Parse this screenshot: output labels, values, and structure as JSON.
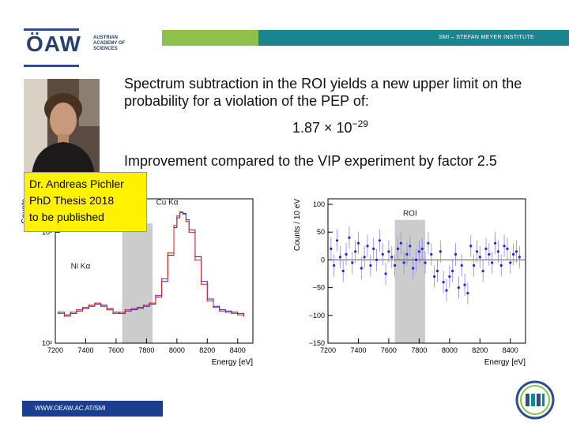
{
  "header": {
    "institute": "SMI – STEFAN MEYER INSTITUTE",
    "oaw_logo": "ÖAW",
    "academy_lines": [
      "AUSTRIAN",
      "ACADEMY OF",
      "SCIENCES"
    ]
  },
  "slide": {
    "headline": "Spectrum subtraction in the ROI yields a new upper limit on the probability for a violation of the PEP of:",
    "formula_mantissa": "1.87 × 10",
    "formula_exponent": "−29",
    "improvement": "Improvement compared to the VIP experiment by factor 2.5",
    "note_lines": [
      "Dr. Andreas Pichler",
      "PhD Thesis 2018",
      "to be published"
    ],
    "photo_icon": "portrait-photo"
  },
  "footer": {
    "url": "WWW.OEAW.AC.AT/SMI",
    "logo_icon": "smi-logo"
  },
  "colors": {
    "green": "#8fc04a",
    "teal": "#18858f",
    "navy": "#1a3f8f",
    "roi_band": "#cccccc",
    "series_blue": "#2222dd",
    "series_red": "#dd2222",
    "error_blue": "#8888ee"
  },
  "chart_data": [
    {
      "type": "line",
      "title": "",
      "xlabel": "Energy [eV]",
      "ylabel": "Counts",
      "log_y": true,
      "xlim": [
        7200,
        8500
      ],
      "ylim": [
        100,
        2000
      ],
      "x_ticks": [
        7200,
        7400,
        7600,
        7800,
        8000,
        8200,
        8400
      ],
      "y_tick_labels": [
        "10²",
        "10³"
      ],
      "y_ticks": [
        100,
        1000
      ],
      "roi": {
        "label": "ROI",
        "x_range": [
          7640,
          7840
        ]
      },
      "annotations": [
        {
          "text": "Cu Kα",
          "x": 8040,
          "y": 1500
        },
        {
          "text": "Ni Kα",
          "x": 7470,
          "y": 400
        }
      ],
      "x": [
        7220,
        7260,
        7300,
        7340,
        7380,
        7420,
        7460,
        7500,
        7540,
        7580,
        7620,
        7660,
        7700,
        7740,
        7780,
        7820,
        7860,
        7900,
        7940,
        7980,
        8000,
        8020,
        8040,
        8060,
        8080,
        8120,
        8160,
        8200,
        8240,
        8280,
        8320,
        8360,
        8400,
        8440
      ],
      "series": [
        {
          "name": "",
          "color": "blue",
          "values": [
            190,
            180,
            185,
            195,
            205,
            215,
            225,
            220,
            205,
            190,
            185,
            195,
            200,
            210,
            215,
            225,
            260,
            360,
            620,
            1100,
            1350,
            1500,
            1480,
            1300,
            1050,
            600,
            360,
            250,
            215,
            200,
            195,
            190,
            185,
            180
          ]
        },
        {
          "name": "",
          "color": "red",
          "values": [
            185,
            175,
            190,
            200,
            210,
            220,
            230,
            215,
            200,
            185,
            190,
            200,
            205,
            205,
            220,
            230,
            270,
            380,
            650,
            1150,
            1400,
            1520,
            1450,
            1250,
            1000,
            560,
            340,
            240,
            210,
            195,
            190,
            185,
            180,
            175
          ]
        }
      ]
    },
    {
      "type": "scatter",
      "title": "",
      "xlabel": "Energy [eV]",
      "ylabel": "Counts / 10 eV",
      "xlim": [
        7200,
        8500
      ],
      "ylim": [
        -150,
        110
      ],
      "x_ticks": [
        7200,
        7400,
        7600,
        7800,
        8000,
        8200,
        8400
      ],
      "y_ticks": [
        -150,
        -100,
        -50,
        0,
        50,
        100
      ],
      "y_tick_labels": [
        "−150",
        "−100",
        "−50",
        "0",
        "50",
        "100"
      ],
      "roi": {
        "label": "ROI",
        "x_range": [
          7640,
          7840
        ]
      },
      "x": [
        7220,
        7240,
        7260,
        7280,
        7300,
        7320,
        7340,
        7360,
        7380,
        7400,
        7420,
        7440,
        7460,
        7480,
        7500,
        7520,
        7540,
        7560,
        7580,
        7600,
        7620,
        7640,
        7660,
        7680,
        7700,
        7720,
        7740,
        7760,
        7780,
        7800,
        7820,
        7840,
        7860,
        7880,
        7900,
        7920,
        7940,
        7960,
        7980,
        8000,
        8020,
        8040,
        8060,
        8080,
        8100,
        8120,
        8140,
        8160,
        8180,
        8200,
        8220,
        8240,
        8260,
        8280,
        8300,
        8320,
        8340,
        8360,
        8380,
        8400,
        8420,
        8440,
        8460
      ],
      "y": [
        20,
        -10,
        35,
        5,
        -20,
        10,
        40,
        -5,
        15,
        30,
        -15,
        5,
        25,
        -10,
        20,
        0,
        35,
        10,
        -25,
        15,
        5,
        -10,
        20,
        30,
        -5,
        10,
        25,
        -15,
        0,
        15,
        20,
        -5,
        30,
        10,
        -30,
        -20,
        15,
        -40,
        -55,
        -30,
        -20,
        10,
        -50,
        -10,
        -45,
        -60,
        25,
        -10,
        15,
        5,
        -20,
        20,
        10,
        -5,
        30,
        15,
        -10,
        25,
        20,
        -5,
        10,
        15,
        5
      ],
      "error": 20
    }
  ]
}
